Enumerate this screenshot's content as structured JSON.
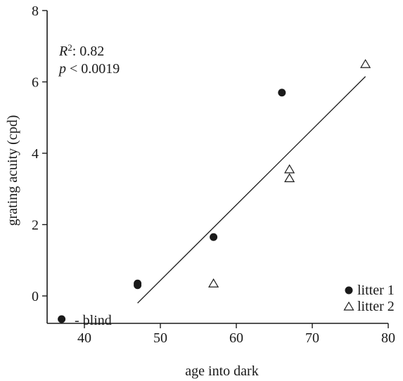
{
  "chart_data": {
    "type": "scatter",
    "xlabel": "age into dark",
    "ylabel": "grating acuity (cpd)",
    "xlim": [
      35,
      80
    ],
    "ylim": [
      -0.8,
      8
    ],
    "xticks": [
      40,
      50,
      60,
      70,
      80
    ],
    "yticks": [
      0,
      2,
      4,
      6,
      8
    ],
    "grid": false,
    "legend_position": "bottom-right",
    "annotations": {
      "r2_symbol": "R",
      "r2_exponent": "2",
      "r2_value": ": 0.82",
      "p_symbol": "p",
      "p_value": " < 0.0019",
      "blind_label": "- blind"
    },
    "series": [
      {
        "name": "litter 1",
        "marker": "filled-circle",
        "color": "#1a1a1a",
        "points": [
          {
            "x": 37,
            "y": -0.65
          },
          {
            "x": 47,
            "y": 0.3
          },
          {
            "x": 47,
            "y": 0.35
          },
          {
            "x": 57,
            "y": 1.65
          },
          {
            "x": 66,
            "y": 5.7
          }
        ]
      },
      {
        "name": "litter 2",
        "marker": "open-triangle",
        "color": "#1a1a1a",
        "points": [
          {
            "x": 57,
            "y": 0.35
          },
          {
            "x": 67,
            "y": 3.3
          },
          {
            "x": 67,
            "y": 3.55
          },
          {
            "x": 77,
            "y": 6.5
          }
        ]
      }
    ],
    "regression_line": {
      "x": [
        47,
        77
      ],
      "y": [
        -0.2,
        6.15
      ]
    }
  }
}
